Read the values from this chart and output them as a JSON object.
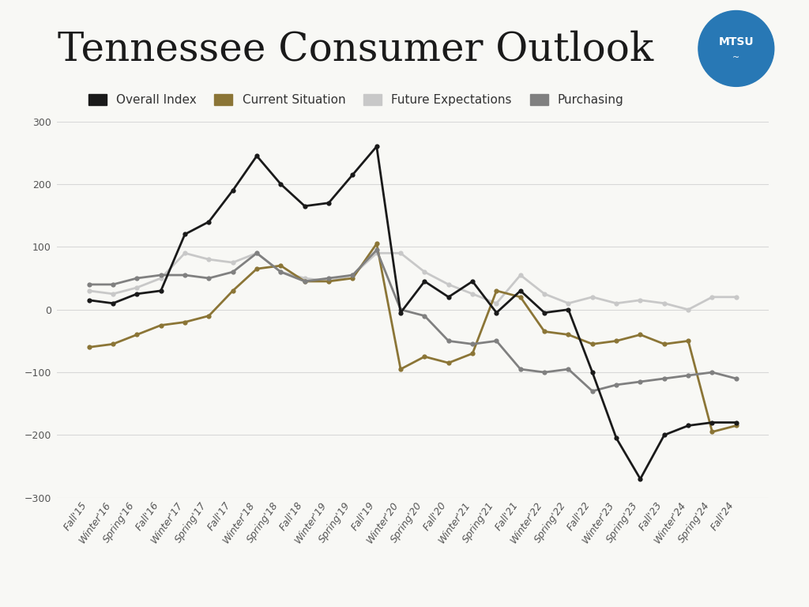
{
  "title": "Tennessee Consumer Outlook",
  "background_color": "#f8f8f5",
  "series": {
    "Overall Index": {
      "color": "#1a1a1a",
      "values": [
        15,
        10,
        25,
        30,
        120,
        140,
        190,
        245,
        200,
        165,
        170,
        215,
        260,
        -5,
        45,
        20,
        45,
        -5,
        30,
        -5,
        0,
        -100,
        -205,
        -270,
        -200,
        -185,
        -180,
        -180
      ]
    },
    "Current Situation": {
      "color": "#8B7536",
      "values": [
        -60,
        -55,
        -40,
        -25,
        -20,
        -10,
        30,
        65,
        70,
        45,
        45,
        50,
        105,
        -95,
        -75,
        -85,
        -70,
        30,
        20,
        -35,
        -40,
        -55,
        -50,
        -40,
        -55,
        -50,
        -195,
        -185
      ]
    },
    "Future Expectations": {
      "color": "#c8c8c8",
      "values": [
        30,
        25,
        35,
        50,
        90,
        80,
        75,
        90,
        60,
        50,
        45,
        55,
        90,
        90,
        60,
        40,
        25,
        10,
        55,
        25,
        10,
        20,
        10,
        15,
        10,
        0,
        20,
        20
      ]
    },
    "Purchasing": {
      "color": "#808080",
      "values": [
        40,
        40,
        50,
        55,
        55,
        50,
        60,
        90,
        60,
        45,
        50,
        55,
        95,
        0,
        -10,
        -50,
        -55,
        -50,
        -95,
        -100,
        -95,
        -130,
        -120,
        -115,
        -110,
        -105,
        -100,
        -110
      ]
    }
  },
  "x_labels": [
    "Fall'15",
    "Winter'16",
    "Spring'16",
    "Fall'16",
    "Winter'17",
    "Spring'17",
    "Fall'17",
    "Winter'18",
    "Spring'18",
    "Fall'18",
    "Winter'19",
    "Spring'19",
    "Fall'19",
    "Winter'20",
    "Spring'20",
    "Fall'20",
    "Winter'21",
    "Spring'21",
    "Fall'21",
    "Winter'22",
    "Spring'22",
    "Fall'22",
    "Winter'23",
    "Spring'23",
    "Fall'23",
    "Winter'24",
    "Spring'24",
    "Fall'24"
  ],
  "ylim": [
    -300,
    300
  ],
  "yticks": [
    -300,
    -200,
    -100,
    0,
    100,
    200,
    300
  ],
  "grid_color": "#d8d8d8",
  "title_fontsize": 36,
  "tick_fontsize": 9,
  "legend_fontsize": 11,
  "logo_color": "#2878b5",
  "logo_text": "MTSU"
}
